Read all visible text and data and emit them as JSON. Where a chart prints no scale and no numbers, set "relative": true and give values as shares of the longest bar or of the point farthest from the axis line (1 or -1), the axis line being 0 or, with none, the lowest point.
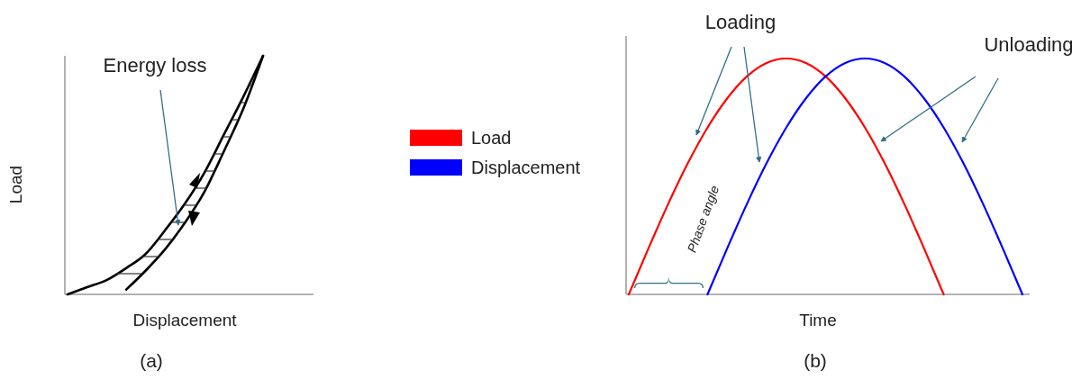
{
  "chart_data": [
    {
      "type": "line",
      "title": "(a)",
      "xlabel": "Displacement",
      "ylabel": "Load",
      "relative": true,
      "tick_labels": false,
      "categories": [
        null,
        null,
        null,
        null,
        null,
        null,
        null,
        null,
        null,
        null,
        null,
        null,
        null
      ],
      "series": [
        {
          "color": "#000000",
          "values": [
            0,
            0.03,
            0.06,
            0.11,
            0.17,
            0.27,
            0.38,
            0.51,
            0.67,
            0.83,
            1,
            null,
            null
          ]
        },
        {
          "color": "#000000",
          "values": [
            null,
            null,
            null,
            0.02,
            0.1,
            0.19,
            0.3,
            0.43,
            0.6,
            0.78,
            1,
            null,
            null
          ]
        }
      ],
      "annotations": [
        "Energy loss"
      ]
    },
    {
      "type": "line",
      "title": "(b)",
      "xlabel": "Time",
      "relative": true,
      "tick_labels": false,
      "legend": "left",
      "categories": [
        null,
        null,
        null,
        null,
        null,
        null,
        null,
        null,
        null,
        null,
        null,
        null,
        null,
        null,
        null,
        null,
        null,
        null,
        null,
        null,
        null
      ],
      "series": [
        {
          "name": "Load",
          "color": "#ff0000",
          "values": [
            0,
            0.195,
            0.383,
            0.556,
            0.707,
            0.831,
            0.924,
            0.981,
            1,
            0.981,
            0.924,
            0.831,
            0.707,
            0.556,
            0.383,
            0.195,
            0,
            null,
            null,
            null,
            null
          ]
        },
        {
          "name": "Displacement",
          "color": "#0000ff",
          "values": [
            null,
            null,
            null,
            null,
            0,
            0.195,
            0.383,
            0.556,
            0.707,
            0.831,
            0.924,
            0.981,
            1,
            0.981,
            0.924,
            0.831,
            0.707,
            0.556,
            0.383,
            0.195,
            0
          ]
        }
      ],
      "annotations": [
        "Loading",
        "Unloading",
        "Phase angle"
      ]
    }
  ]
}
